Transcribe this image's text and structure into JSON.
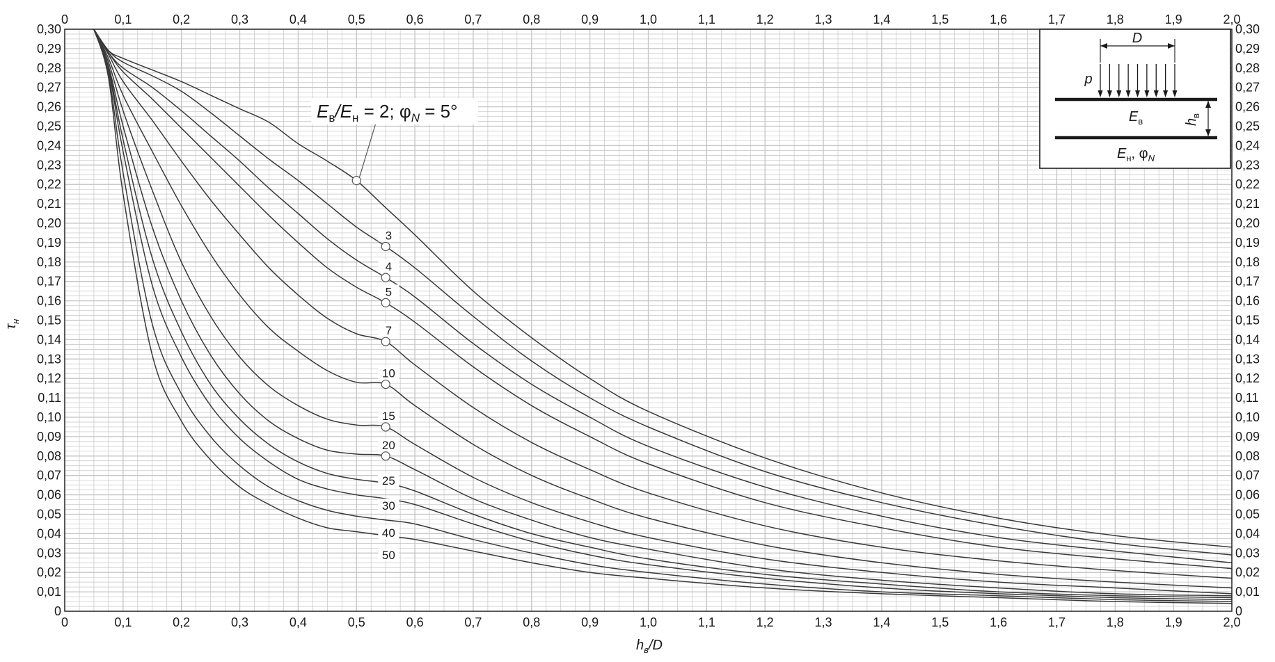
{
  "chart_data": {
    "type": "line",
    "xlabel": "h",
    "xlabel_sub": "в",
    "xlabel_suffix": "/D",
    "ylabel": "τ",
    "ylabel_sub": "н",
    "xlim": [
      0,
      2.0
    ],
    "ylim": [
      0,
      0.3
    ],
    "x_ticks": [
      "0",
      "0,1",
      "0,2",
      "0,3",
      "0,4",
      "0,5",
      "0,6",
      "0,7",
      "0,8",
      "0,9",
      "1,0",
      "1,1",
      "1,2",
      "1,3",
      "1,4",
      "1,5",
      "1,6",
      "1,7",
      "1,8",
      "1,9",
      "2,0"
    ],
    "y_ticks": [
      "0",
      "0,01",
      "0,02",
      "0,03",
      "0,04",
      "0,05",
      "0,06",
      "0,07",
      "0,08",
      "0,09",
      "0,10",
      "0,11",
      "0,12",
      "0,13",
      "0,14",
      "0,15",
      "0,16",
      "0,17",
      "0,18",
      "0,19",
      "0,20",
      "0,21",
      "0,22",
      "0,23",
      "0,24",
      "0,25",
      "0,26",
      "0,27",
      "0,28",
      "0,29",
      "0,30"
    ],
    "grid": true,
    "series": [
      {
        "name": "2",
        "x": [
          0.05,
          0.075,
          0.1,
          0.15,
          0.2,
          0.25,
          0.3,
          0.35,
          0.4,
          0.45,
          0.5,
          0.55,
          0.6,
          0.7,
          0.8,
          0.9,
          1.0,
          1.2,
          1.4,
          1.6,
          1.8,
          2.0
        ],
        "y": [
          0.3,
          0.289,
          0.285,
          0.279,
          0.273,
          0.266,
          0.259,
          0.252,
          0.241,
          0.232,
          0.222,
          0.208,
          0.194,
          0.165,
          0.141,
          0.12,
          0.103,
          0.079,
          0.061,
          0.048,
          0.039,
          0.033
        ]
      },
      {
        "name": "3",
        "x": [
          0.05,
          0.075,
          0.1,
          0.15,
          0.2,
          0.25,
          0.3,
          0.35,
          0.4,
          0.45,
          0.5,
          0.55,
          0.6,
          0.7,
          0.8,
          0.9,
          1.0,
          1.2,
          1.4,
          1.6,
          1.8,
          2.0
        ],
        "y": [
          0.3,
          0.289,
          0.283,
          0.276,
          0.268,
          0.257,
          0.245,
          0.233,
          0.222,
          0.21,
          0.198,
          0.188,
          0.177,
          0.152,
          0.129,
          0.11,
          0.095,
          0.072,
          0.056,
          0.044,
          0.035,
          0.029
        ]
      },
      {
        "name": "4",
        "x": [
          0.05,
          0.075,
          0.1,
          0.15,
          0.2,
          0.25,
          0.3,
          0.35,
          0.4,
          0.45,
          0.5,
          0.55,
          0.6,
          0.7,
          0.8,
          0.9,
          1.0,
          1.2,
          1.4,
          1.6,
          1.8,
          2.0
        ],
        "y": [
          0.3,
          0.288,
          0.28,
          0.27,
          0.258,
          0.245,
          0.232,
          0.218,
          0.205,
          0.192,
          0.181,
          0.172,
          0.162,
          0.138,
          0.117,
          0.1,
          0.085,
          0.064,
          0.049,
          0.038,
          0.031,
          0.025
        ]
      },
      {
        "name": "5",
        "x": [
          0.05,
          0.075,
          0.1,
          0.15,
          0.2,
          0.25,
          0.3,
          0.35,
          0.4,
          0.45,
          0.5,
          0.55,
          0.6,
          0.7,
          0.8,
          0.9,
          1.0,
          1.2,
          1.4,
          1.6,
          1.8,
          2.0
        ],
        "y": [
          0.3,
          0.288,
          0.278,
          0.264,
          0.249,
          0.234,
          0.219,
          0.204,
          0.19,
          0.177,
          0.167,
          0.159,
          0.149,
          0.126,
          0.106,
          0.09,
          0.076,
          0.056,
          0.043,
          0.033,
          0.027,
          0.022
        ]
      },
      {
        "name": "7",
        "x": [
          0.05,
          0.075,
          0.1,
          0.15,
          0.2,
          0.25,
          0.3,
          0.35,
          0.4,
          0.45,
          0.5,
          0.55,
          0.6,
          0.7,
          0.8,
          0.9,
          1.0,
          1.2,
          1.4,
          1.6,
          1.8,
          2.0
        ],
        "y": [
          0.3,
          0.287,
          0.273,
          0.253,
          0.232,
          0.212,
          0.194,
          0.177,
          0.163,
          0.151,
          0.143,
          0.139,
          0.127,
          0.105,
          0.087,
          0.073,
          0.061,
          0.044,
          0.033,
          0.026,
          0.021,
          0.017
        ]
      },
      {
        "name": "10",
        "x": [
          0.05,
          0.075,
          0.1,
          0.15,
          0.2,
          0.25,
          0.3,
          0.35,
          0.4,
          0.45,
          0.5,
          0.55,
          0.6,
          0.7,
          0.8,
          0.9,
          1.0,
          1.2,
          1.4,
          1.6,
          1.8,
          2.0
        ],
        "y": [
          0.3,
          0.285,
          0.266,
          0.237,
          0.209,
          0.184,
          0.163,
          0.146,
          0.134,
          0.124,
          0.118,
          0.117,
          0.106,
          0.086,
          0.07,
          0.058,
          0.048,
          0.034,
          0.025,
          0.019,
          0.015,
          0.012
        ]
      },
      {
        "name": "15",
        "x": [
          0.05,
          0.075,
          0.1,
          0.15,
          0.2,
          0.25,
          0.3,
          0.35,
          0.4,
          0.45,
          0.5,
          0.55,
          0.6,
          0.7,
          0.8,
          0.9,
          1.0,
          1.2,
          1.4,
          1.6,
          1.8,
          2.0
        ],
        "y": [
          0.3,
          0.283,
          0.258,
          0.217,
          0.18,
          0.152,
          0.131,
          0.116,
          0.106,
          0.099,
          0.096,
          0.095,
          0.086,
          0.069,
          0.056,
          0.046,
          0.038,
          0.027,
          0.02,
          0.015,
          0.012,
          0.009
        ]
      },
      {
        "name": "20",
        "x": [
          0.05,
          0.075,
          0.1,
          0.15,
          0.2,
          0.25,
          0.3,
          0.35,
          0.4,
          0.45,
          0.5,
          0.55,
          0.6,
          0.7,
          0.8,
          0.9,
          1.0,
          1.2,
          1.4,
          1.6,
          1.8,
          2.0
        ],
        "y": [
          0.3,
          0.281,
          0.25,
          0.198,
          0.16,
          0.132,
          0.112,
          0.098,
          0.089,
          0.083,
          0.081,
          0.08,
          0.073,
          0.058,
          0.047,
          0.038,
          0.032,
          0.022,
          0.016,
          0.012,
          0.009,
          0.008
        ]
      },
      {
        "name": "25",
        "x": [
          0.05,
          0.075,
          0.1,
          0.15,
          0.2,
          0.25,
          0.3,
          0.35,
          0.4,
          0.45,
          0.5,
          0.55,
          0.6,
          0.7,
          0.8,
          0.9,
          1.0,
          1.2,
          1.4,
          1.6,
          1.8,
          2.0
        ],
        "y": [
          0.3,
          0.28,
          0.243,
          0.182,
          0.144,
          0.117,
          0.099,
          0.086,
          0.077,
          0.071,
          0.068,
          0.066,
          0.062,
          0.05,
          0.04,
          0.033,
          0.027,
          0.019,
          0.014,
          0.01,
          0.008,
          0.007
        ]
      },
      {
        "name": "30",
        "x": [
          0.05,
          0.075,
          0.1,
          0.15,
          0.2,
          0.25,
          0.3,
          0.35,
          0.4,
          0.45,
          0.5,
          0.55,
          0.6,
          0.7,
          0.8,
          0.9,
          1.0,
          1.2,
          1.4,
          1.6,
          1.8,
          2.0
        ],
        "y": [
          0.3,
          0.279,
          0.237,
          0.168,
          0.131,
          0.106,
          0.089,
          0.077,
          0.068,
          0.063,
          0.06,
          0.058,
          0.055,
          0.045,
          0.036,
          0.029,
          0.024,
          0.017,
          0.012,
          0.009,
          0.007,
          0.006
        ]
      },
      {
        "name": "40",
        "x": [
          0.05,
          0.075,
          0.1,
          0.15,
          0.2,
          0.25,
          0.3,
          0.35,
          0.4,
          0.45,
          0.5,
          0.55,
          0.6,
          0.7,
          0.8,
          0.9,
          1.0,
          1.2,
          1.4,
          1.6,
          1.8,
          2.0
        ],
        "y": [
          0.3,
          0.277,
          0.226,
          0.148,
          0.112,
          0.09,
          0.075,
          0.064,
          0.057,
          0.052,
          0.049,
          0.047,
          0.045,
          0.037,
          0.03,
          0.024,
          0.02,
          0.014,
          0.01,
          0.008,
          0.006,
          0.005
        ]
      },
      {
        "name": "50",
        "x": [
          0.05,
          0.075,
          0.1,
          0.15,
          0.2,
          0.25,
          0.3,
          0.35,
          0.4,
          0.45,
          0.5,
          0.55,
          0.6,
          0.7,
          0.8,
          0.9,
          1.0,
          1.2,
          1.4,
          1.6,
          1.8,
          2.0
        ],
        "y": [
          0.3,
          0.275,
          0.215,
          0.132,
          0.098,
          0.078,
          0.064,
          0.055,
          0.048,
          0.043,
          0.041,
          0.039,
          0.037,
          0.031,
          0.025,
          0.02,
          0.017,
          0.012,
          0.009,
          0.007,
          0.005,
          0.004
        ]
      }
    ],
    "markers": [
      {
        "series": "2",
        "x": 0.5,
        "y": 0.222
      },
      {
        "series": "3",
        "x": 0.55,
        "y": 0.188
      },
      {
        "series": "4",
        "x": 0.55,
        "y": 0.172
      },
      {
        "series": "5",
        "x": 0.55,
        "y": 0.159
      },
      {
        "series": "7",
        "x": 0.55,
        "y": 0.139
      },
      {
        "series": "10",
        "x": 0.55,
        "y": 0.117
      },
      {
        "series": "15",
        "x": 0.55,
        "y": 0.095
      },
      {
        "series": "20",
        "x": 0.55,
        "y": 0.08
      }
    ],
    "annotation": {
      "parts": [
        "E",
        "в",
        "/E",
        "н",
        " = 2; φ",
        "N",
        " = 5°"
      ]
    },
    "curve_labels": [
      "3",
      "4",
      "5",
      "7",
      "10",
      "15",
      "20",
      "25",
      "30",
      "40",
      "50"
    ],
    "inset": {
      "D": "D",
      "p": "p",
      "E_top": "E",
      "E_top_sub": "в",
      "h": "h",
      "h_sub": "в",
      "E_bottom": "E",
      "E_bottom_sub": "н",
      "phi": ", φ",
      "phi_sub": "N"
    }
  },
  "colors": {
    "grid": "#c4c4c4",
    "axis": "#1a1a1a",
    "curve": "#3a3a3a",
    "marker": "#555555"
  }
}
